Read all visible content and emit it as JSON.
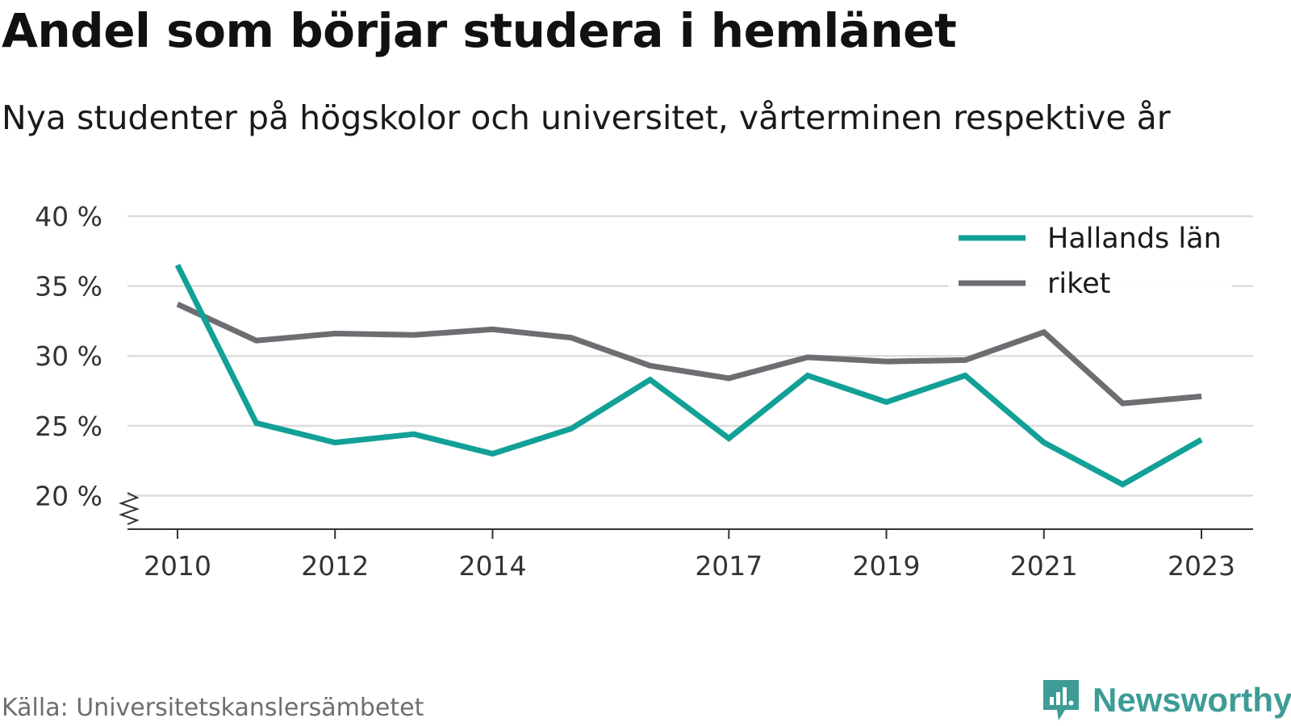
{
  "title": "Andel som börjar studera i hemlänet",
  "subtitle": "Nya studenter på högskolor och universitet, vårterminen respektive år",
  "source": "Källa: Universitetskanslersämbetet",
  "brand": {
    "name": "Newsworthy",
    "icon": "newsworthy-logo-icon",
    "color": "#3d9c96"
  },
  "chart_data": {
    "type": "line",
    "title": "Andel som börjar studera i hemlänet",
    "subtitle": "Nya studenter på högskolor och universitet, vårterminen respektive år",
    "xlabel": "",
    "ylabel": "",
    "x": [
      2010,
      2011,
      2012,
      2013,
      2014,
      2015,
      2016,
      2017,
      2018,
      2019,
      2020,
      2021,
      2022,
      2023
    ],
    "x_tick_labels": [
      "2010",
      "2012",
      "2014",
      "2017",
      "2019",
      "2021",
      "2023"
    ],
    "y_tick_labels": [
      "40 %",
      "35 %",
      "30 %",
      "25 %",
      "20 %"
    ],
    "y_ticks": [
      40,
      35,
      30,
      25,
      20
    ],
    "ylim": [
      17.6,
      40
    ],
    "y_axis_break": true,
    "grid": true,
    "legend_position": "top-right",
    "series": [
      {
        "name": "Hallands län",
        "color": "#12a097",
        "values": [
          36.5,
          25.2,
          23.8,
          24.4,
          23.0,
          24.8,
          28.3,
          24.1,
          28.6,
          26.7,
          28.6,
          23.8,
          20.8,
          24.0
        ]
      },
      {
        "name": "riket",
        "color": "#6e6d72",
        "values": [
          33.7,
          31.1,
          31.6,
          31.5,
          31.9,
          31.3,
          29.3,
          28.4,
          29.9,
          29.6,
          29.7,
          31.7,
          26.6,
          27.1
        ]
      }
    ]
  }
}
